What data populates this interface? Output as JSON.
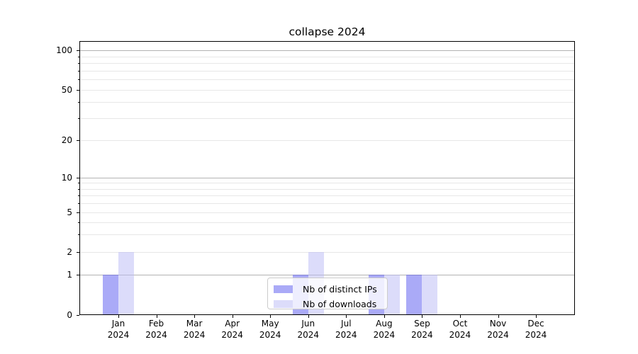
{
  "title": "collapse 2024",
  "legend": {
    "items": [
      {
        "label": "Nb of distinct IPs"
      },
      {
        "label": "Nb of downloads"
      }
    ]
  },
  "chart_data": {
    "type": "bar",
    "title": "collapse 2024",
    "categories": [
      "Jan 2024",
      "Feb 2024",
      "Mar 2024",
      "Apr 2024",
      "May 2024",
      "Jun 2024",
      "Jul 2024",
      "Aug 2024",
      "Sep 2024",
      "Oct 2024",
      "Nov 2024",
      "Dec 2024"
    ],
    "series": [
      {
        "name": "Nb of distinct IPs",
        "color": "rgba(85,85,239,0.5)",
        "values": [
          1,
          0,
          0,
          0,
          0,
          1,
          0,
          1,
          1,
          0,
          0,
          0
        ]
      },
      {
        "name": "Nb of downloads",
        "color": "rgba(185,185,245,0.5)",
        "values": [
          2,
          0,
          0,
          0,
          0,
          2,
          0,
          1,
          1,
          0,
          0,
          0
        ]
      }
    ],
    "xlabel": "",
    "ylabel": "",
    "y_ticks": [
      0,
      1,
      2,
      5,
      10,
      20,
      50,
      100
    ],
    "y_minor_gridlines": [
      2,
      3,
      4,
      5,
      6,
      7,
      8,
      9,
      20,
      30,
      40,
      50,
      60,
      70,
      80,
      90
    ],
    "y_major_gridlines": [
      1,
      10,
      100
    ],
    "ylim": [
      0,
      117
    ],
    "yscale": "symlog",
    "grid": true,
    "legend_position": "lower center"
  }
}
